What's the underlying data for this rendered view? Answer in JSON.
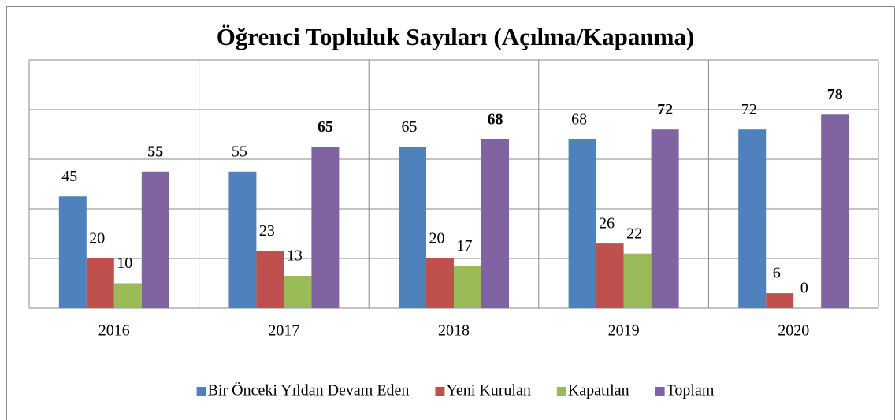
{
  "chart_data": {
    "type": "bar",
    "title": "Öğrenci Topluluk Sayıları (Açılma/Kapanma)",
    "categories": [
      "2016",
      "2017",
      "2018",
      "2019",
      "2020"
    ],
    "series": [
      {
        "name": "Bir Önceki Yıldan Devam Eden",
        "color": "#4f81bd",
        "values": [
          45,
          55,
          65,
          68,
          72
        ]
      },
      {
        "name": "Yeni Kurulan",
        "color": "#c0504d",
        "values": [
          20,
          23,
          20,
          26,
          6
        ]
      },
      {
        "name": "Kapatılan",
        "color": "#9bbb59",
        "values": [
          10,
          13,
          17,
          22,
          0
        ]
      },
      {
        "name": "Toplam",
        "color": "#8064a2",
        "values": [
          55,
          65,
          68,
          72,
          78
        ],
        "bold_labels": true
      }
    ],
    "ylim": [
      0,
      100
    ],
    "yticks": [
      0,
      20,
      40,
      60,
      80,
      100
    ],
    "grid": true,
    "legend": "bottom"
  }
}
